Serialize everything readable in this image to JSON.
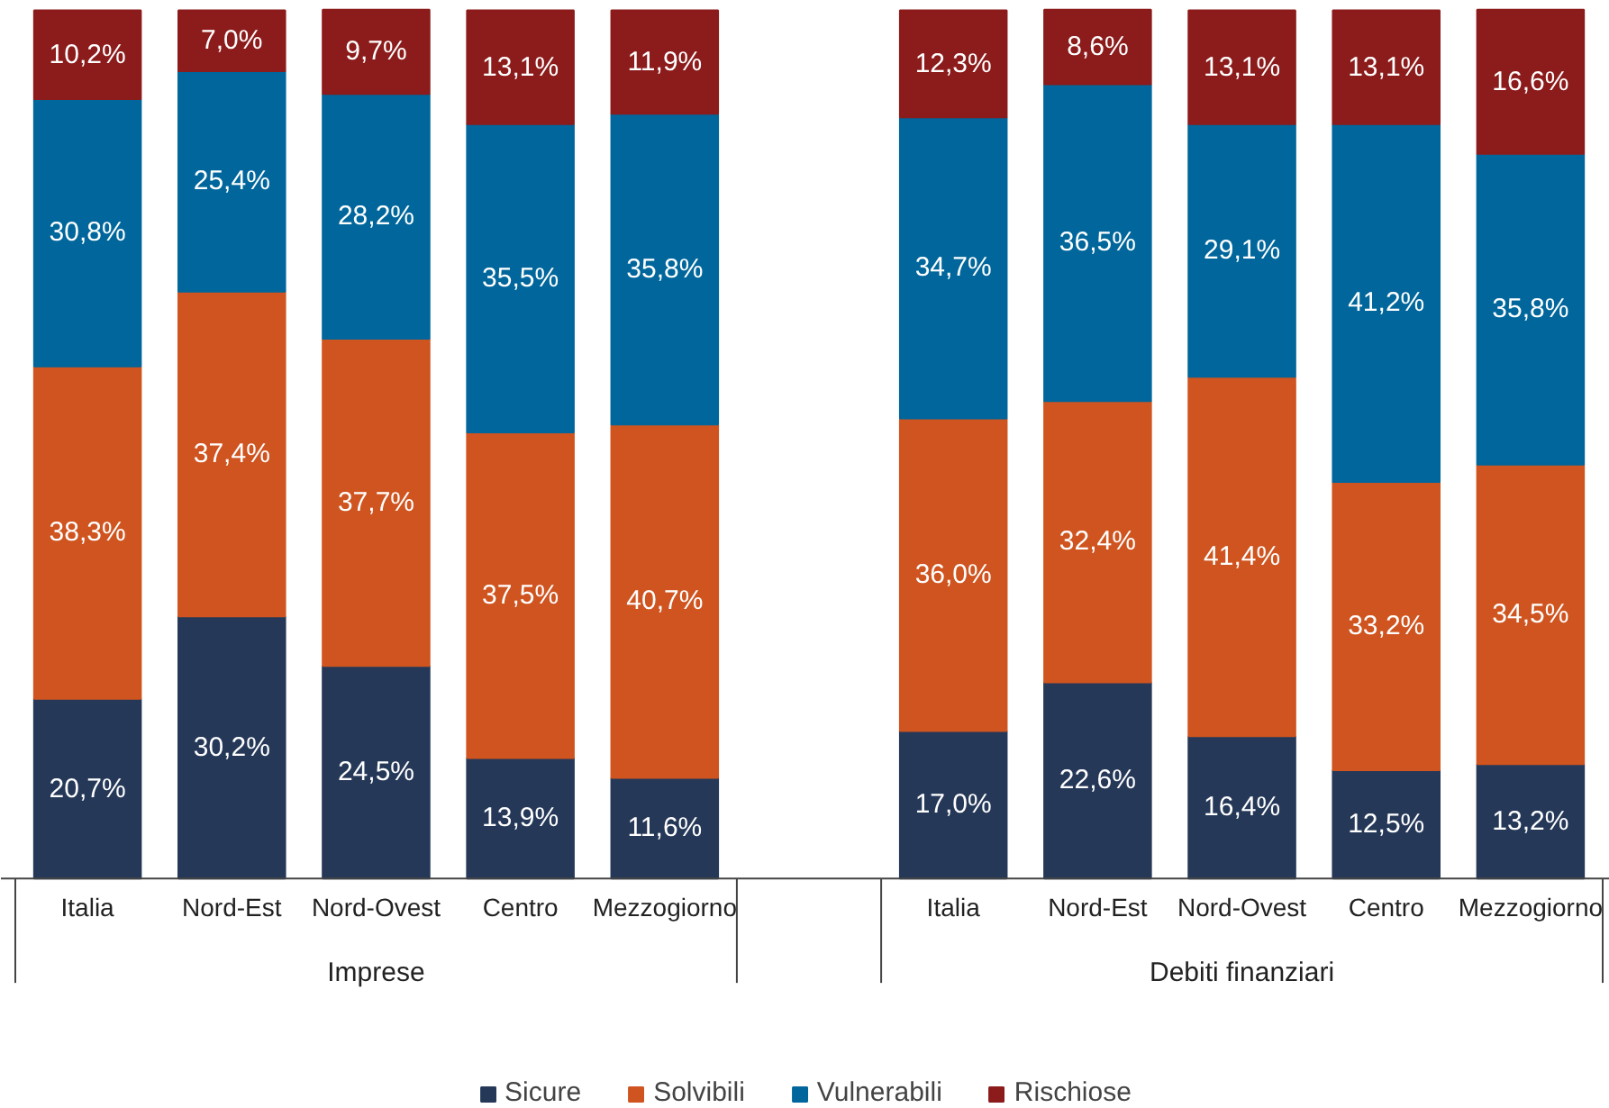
{
  "chart_data": {
    "type": "bar",
    "stacked": true,
    "legend": "bottom",
    "categories": [
      "Italia",
      "Nord-Est",
      "Nord-Ovest",
      "Centro",
      "Mezzogiorno",
      null,
      "Italia",
      "Nord-Est",
      "Nord-Ovest",
      "Centro",
      "Mezzogiorno"
    ],
    "annotations": [
      "Imprese",
      "Debiti finanziari"
    ],
    "series": [
      {
        "name": "Sicure",
        "color": "#253858",
        "values": [
          20.7,
          30.2,
          24.5,
          13.9,
          11.6,
          null,
          17.0,
          22.6,
          16.4,
          12.5,
          13.2
        ],
        "value_labels": [
          "20,7%",
          "30,2%",
          "24,5%",
          "13,9%",
          "11,6%",
          null,
          "17,0%",
          "22,6%",
          "16,4%",
          "12,5%",
          "13,2%"
        ]
      },
      {
        "name": "Solvibili",
        "color": "#cf541f",
        "values": [
          38.3,
          37.4,
          37.7,
          37.5,
          40.7,
          null,
          36.0,
          32.4,
          41.4,
          33.2,
          34.5
        ],
        "value_labels": [
          "38,3%",
          "37,4%",
          "37,7%",
          "37,5%",
          "40,7%",
          null,
          "36,0%",
          "32,4%",
          "41,4%",
          "33,2%",
          "34,5%"
        ]
      },
      {
        "name": "Vulnerabili",
        "color": "#00669b",
        "values": [
          30.8,
          25.4,
          28.2,
          35.5,
          35.8,
          null,
          34.7,
          36.5,
          29.1,
          41.2,
          35.8
        ],
        "value_labels": [
          "30,8%",
          "25,4%",
          "28,2%",
          "35,5%",
          "35,8%",
          null,
          "34,7%",
          "36,5%",
          "29,1%",
          "41,2%",
          "35,8%"
        ]
      },
      {
        "name": "Rischiose",
        "color": "#8c1b1b",
        "values": [
          10.2,
          7.0,
          9.7,
          13.1,
          11.9,
          null,
          12.3,
          8.6,
          13.1,
          13.1,
          16.6
        ],
        "value_labels": [
          "10,2%",
          "7,0%",
          "9,7%",
          "13,1%",
          "11,9%",
          null,
          "12,3%",
          "8,6%",
          "13,1%",
          "13,1%",
          "16,6%"
        ]
      }
    ]
  }
}
